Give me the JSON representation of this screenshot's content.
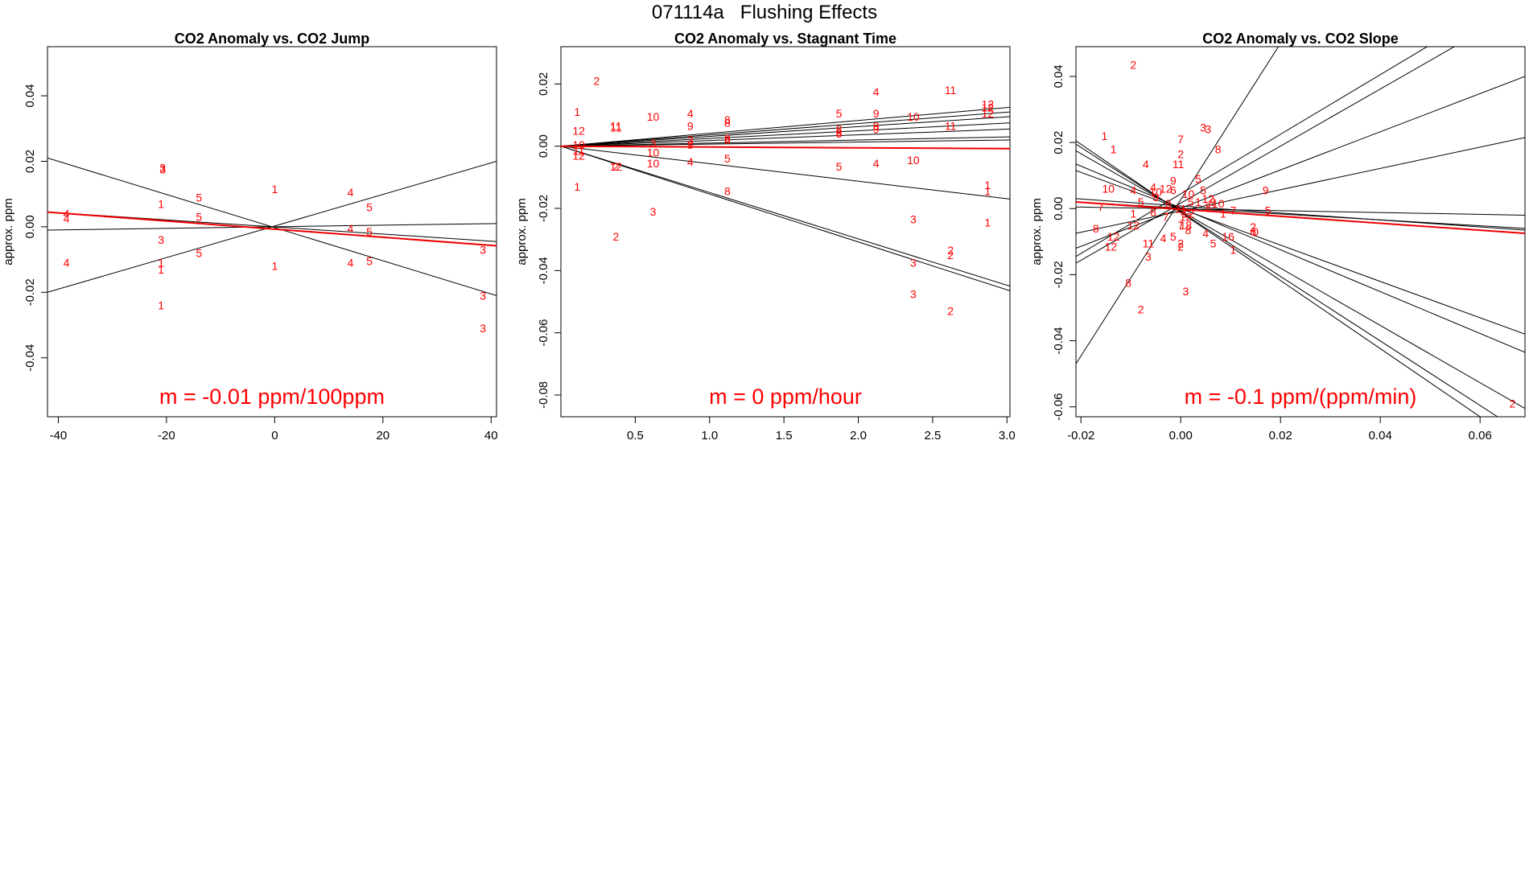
{
  "title": "071114a   Flushing Effects",
  "chart_data": [
    {
      "type": "scatter",
      "title": "CO2 Anomaly vs. CO2 Jump",
      "xlabel": "",
      "ylabel": "approx. ppm",
      "xlim": [
        -42,
        41
      ],
      "ylim": [
        -0.058,
        0.055
      ],
      "xticks": [
        -40,
        -20,
        0,
        20,
        40
      ],
      "xtick_labels": [
        "-40",
        "-20",
        "0",
        "20",
        "40"
      ],
      "yticks": [
        -0.04,
        -0.02,
        0.0,
        0.02,
        0.04
      ],
      "ytick_labels": [
        "-0.04",
        "-0.02",
        "0.00",
        "0.02",
        "0.04"
      ],
      "annotation": "m = -0.01 ppm/100ppm",
      "colors": {
        "points": "#ff0000",
        "fit": "#ee0000",
        "lines": "#000000"
      },
      "points": [
        {
          "x": -20.7,
          "y": 0.018,
          "label": "3"
        },
        {
          "x": -20.7,
          "y": 0.0175,
          "label": "3"
        },
        {
          "x": -14,
          "y": 0.009,
          "label": "5"
        },
        {
          "x": -14,
          "y": 0.003,
          "label": "5"
        },
        {
          "x": -14,
          "y": -0.008,
          "label": "5"
        },
        {
          "x": -21,
          "y": 0.007,
          "label": "1"
        },
        {
          "x": -21,
          "y": -0.004,
          "label": "3"
        },
        {
          "x": -21,
          "y": -0.011,
          "label": "1"
        },
        {
          "x": -21,
          "y": -0.013,
          "label": "1"
        },
        {
          "x": -21,
          "y": -0.024,
          "label": "1"
        },
        {
          "x": -38.5,
          "y": 0.004,
          "label": "4"
        },
        {
          "x": -38.5,
          "y": 0.0025,
          "label": "4"
        },
        {
          "x": -38.5,
          "y": -0.011,
          "label": "4"
        },
        {
          "x": 0,
          "y": 0.0115,
          "label": "1"
        },
        {
          "x": 0,
          "y": -0.012,
          "label": "1"
        },
        {
          "x": 14,
          "y": 0.0105,
          "label": "4"
        },
        {
          "x": 14,
          "y": -0.0005,
          "label": "4"
        },
        {
          "x": 14,
          "y": -0.011,
          "label": "4"
        },
        {
          "x": 17.5,
          "y": 0.006,
          "label": "5"
        },
        {
          "x": 17.5,
          "y": -0.0015,
          "label": "5"
        },
        {
          "x": 17.5,
          "y": -0.0105,
          "label": "5"
        },
        {
          "x": 38.5,
          "y": -0.007,
          "label": "3"
        },
        {
          "x": 38.5,
          "y": -0.021,
          "label": "3"
        },
        {
          "x": 38.5,
          "y": -0.031,
          "label": "3"
        }
      ],
      "lines": [
        {
          "x1": -42,
          "y1": 0.021,
          "x2": 41,
          "y2": -0.021
        },
        {
          "x1": -42,
          "y1": -0.02,
          "x2": 41,
          "y2": 0.02
        },
        {
          "x1": -42,
          "y1": 0.0045,
          "x2": 41,
          "y2": -0.0045
        },
        {
          "x1": -42,
          "y1": -0.001,
          "x2": 41,
          "y2": 0.001
        }
      ],
      "fit": {
        "x1": -42,
        "y1": 0.0045,
        "x2": 41,
        "y2": -0.0058
      }
    },
    {
      "type": "scatter",
      "title": "CO2 Anomaly vs. Stagnant Time",
      "xlabel": "",
      "ylabel": "approx. ppm",
      "xlim": [
        0,
        3.02
      ],
      "ylim": [
        -0.087,
        0.032
      ],
      "xticks": [
        0.5,
        1.0,
        1.5,
        2.0,
        2.5,
        3.0
      ],
      "xtick_labels": [
        "0.5",
        "1.0",
        "1.5",
        "2.0",
        "2.5",
        "3.0"
      ],
      "yticks": [
        -0.08,
        -0.06,
        -0.04,
        -0.02,
        0.0,
        0.02
      ],
      "ytick_labels": [
        "-0.08",
        "-0.06",
        "-0.04",
        "-0.02",
        "0.00",
        "0.02"
      ],
      "annotation": "m = 0 ppm/hour",
      "colors": {
        "points": "#ff0000",
        "fit": "#ee0000",
        "lines": "#000000"
      },
      "points": [
        {
          "x": 0.24,
          "y": 0.021,
          "label": "2"
        },
        {
          "x": 0.11,
          "y": 0.011,
          "label": "1"
        },
        {
          "x": 0.12,
          "y": 0.005,
          "label": "12"
        },
        {
          "x": 0.12,
          "y": 0.0005,
          "label": "10"
        },
        {
          "x": 0.12,
          "y": -0.0015,
          "label": "11"
        },
        {
          "x": 0.12,
          "y": -0.003,
          "label": "12"
        },
        {
          "x": 0.11,
          "y": -0.013,
          "label": "1"
        },
        {
          "x": 0.37,
          "y": 0.0065,
          "label": "11"
        },
        {
          "x": 0.37,
          "y": 0.006,
          "label": "11"
        },
        {
          "x": 0.37,
          "y": -0.0065,
          "label": "12"
        },
        {
          "x": 0.37,
          "y": -0.0065,
          "label": "2"
        },
        {
          "x": 0.37,
          "y": -0.029,
          "label": "2"
        },
        {
          "x": 0.62,
          "y": 0.0095,
          "label": "10"
        },
        {
          "x": 0.62,
          "y": 0.001,
          "label": "3"
        },
        {
          "x": 0.62,
          "y": -0.002,
          "label": "10"
        },
        {
          "x": 0.62,
          "y": -0.0055,
          "label": "10"
        },
        {
          "x": 0.62,
          "y": -0.021,
          "label": "3"
        },
        {
          "x": 0.87,
          "y": 0.0105,
          "label": "4"
        },
        {
          "x": 0.87,
          "y": 0.0065,
          "label": "9"
        },
        {
          "x": 0.87,
          "y": 0.002,
          "label": "3"
        },
        {
          "x": 0.87,
          "y": 0.0005,
          "label": "9"
        },
        {
          "x": 0.87,
          "y": -0.005,
          "label": "4"
        },
        {
          "x": 1.12,
          "y": 0.0085,
          "label": "8"
        },
        {
          "x": 1.12,
          "y": 0.0075,
          "label": "8"
        },
        {
          "x": 1.12,
          "y": 0.0025,
          "label": "8"
        },
        {
          "x": 1.12,
          "y": 0.002,
          "label": "8"
        },
        {
          "x": 1.12,
          "y": -0.004,
          "label": "5"
        },
        {
          "x": 1.12,
          "y": -0.0145,
          "label": "8"
        },
        {
          "x": 1.87,
          "y": 0.0105,
          "label": "5"
        },
        {
          "x": 1.87,
          "y": 0.0055,
          "label": "8"
        },
        {
          "x": 1.87,
          "y": 0.0045,
          "label": "8"
        },
        {
          "x": 1.87,
          "y": 0.004,
          "label": "8"
        },
        {
          "x": 1.87,
          "y": -0.0065,
          "label": "5"
        },
        {
          "x": 2.12,
          "y": 0.0175,
          "label": "4"
        },
        {
          "x": 2.12,
          "y": 0.0105,
          "label": "9"
        },
        {
          "x": 2.12,
          "y": 0.0065,
          "label": "9"
        },
        {
          "x": 2.12,
          "y": 0.0055,
          "label": "9"
        },
        {
          "x": 2.12,
          "y": -0.0055,
          "label": "4"
        },
        {
          "x": 2.37,
          "y": 0.0095,
          "label": "10"
        },
        {
          "x": 2.37,
          "y": -0.0045,
          "label": "10"
        },
        {
          "x": 2.37,
          "y": -0.0235,
          "label": "3"
        },
        {
          "x": 2.37,
          "y": -0.0375,
          "label": "3"
        },
        {
          "x": 2.37,
          "y": -0.0475,
          "label": "3"
        },
        {
          "x": 2.62,
          "y": 0.018,
          "label": "11"
        },
        {
          "x": 2.62,
          "y": 0.0065,
          "label": "11"
        },
        {
          "x": 2.62,
          "y": -0.0335,
          "label": "2"
        },
        {
          "x": 2.62,
          "y": -0.035,
          "label": "2"
        },
        {
          "x": 2.62,
          "y": -0.053,
          "label": "2"
        },
        {
          "x": 2.87,
          "y": 0.0135,
          "label": "12"
        },
        {
          "x": 2.87,
          "y": 0.0125,
          "label": "12"
        },
        {
          "x": 2.87,
          "y": 0.0105,
          "label": "12"
        },
        {
          "x": 2.87,
          "y": -0.0125,
          "label": "1"
        },
        {
          "x": 2.87,
          "y": -0.0145,
          "label": "1"
        },
        {
          "x": 2.87,
          "y": -0.0245,
          "label": "1"
        }
      ],
      "lines": [
        {
          "x1": 0,
          "y1": 0,
          "x2": 3.02,
          "y2": 0.0125
        },
        {
          "x1": 0,
          "y1": 0,
          "x2": 3.02,
          "y2": 0.011
        },
        {
          "x1": 0,
          "y1": 0,
          "x2": 3.02,
          "y2": 0.0095
        },
        {
          "x1": 0,
          "y1": 0,
          "x2": 3.02,
          "y2": 0.0075
        },
        {
          "x1": 0,
          "y1": 0,
          "x2": 3.02,
          "y2": 0.0055
        },
        {
          "x1": 0,
          "y1": 0,
          "x2": 3.02,
          "y2": 0.003
        },
        {
          "x1": 0,
          "y1": 0,
          "x2": 3.02,
          "y2": 0.002
        },
        {
          "x1": 0,
          "y1": 0,
          "x2": 3.02,
          "y2": -0.017
        },
        {
          "x1": 0,
          "y1": 0,
          "x2": 3.02,
          "y2": -0.045
        },
        {
          "x1": 0,
          "y1": 0,
          "x2": 3.02,
          "y2": -0.0465
        }
      ],
      "fit": {
        "x1": 0,
        "y1": 0,
        "x2": 3.02,
        "y2": -0.0008
      }
    },
    {
      "type": "scatter",
      "title": "CO2 Anomaly vs. CO2 Slope",
      "xlabel": "",
      "ylabel": "approx. ppm",
      "xlim": [
        -0.021,
        0.069
      ],
      "ylim": [
        -0.063,
        0.049
      ],
      "xticks": [
        -0.02,
        0.0,
        0.02,
        0.04,
        0.06
      ],
      "xtick_labels": [
        "-0.02",
        "0.00",
        "0.02",
        "0.04",
        "0.06"
      ],
      "yticks": [
        -0.06,
        -0.04,
        -0.02,
        0.0,
        0.02,
        0.04
      ],
      "ytick_labels": [
        "-0.06",
        "-0.04",
        "-0.02",
        "0.00",
        "0.02",
        "0.04"
      ],
      "annotation": "m = -0.1 ppm/(ppm/min)",
      "colors": {
        "points": "#ff0000",
        "fit": "#ee0000",
        "lines": "#000000"
      },
      "points": [
        {
          "x": -0.0095,
          "y": 0.0435,
          "label": "2"
        },
        {
          "x": -0.0153,
          "y": 0.022,
          "label": "1"
        },
        {
          "x": -0.0135,
          "y": 0.018,
          "label": "1"
        },
        {
          "x": -0.007,
          "y": 0.0135,
          "label": "4"
        },
        {
          "x": -0.0145,
          "y": 0.006,
          "label": "10"
        },
        {
          "x": -0.0095,
          "y": 0.0055,
          "label": "4"
        },
        {
          "x": -0.0055,
          "y": 0.0065,
          "label": "4"
        },
        {
          "x": -0.005,
          "y": 0.005,
          "label": "10"
        },
        {
          "x": -0.003,
          "y": 0.006,
          "label": "12"
        },
        {
          "x": -0.0015,
          "y": 0.0085,
          "label": "9"
        },
        {
          "x": 0.0,
          "y": 0.0165,
          "label": "2"
        },
        {
          "x": -0.0005,
          "y": 0.0135,
          "label": "11"
        },
        {
          "x": 0.0,
          "y": 0.021,
          "label": "7"
        },
        {
          "x": 0.0045,
          "y": 0.0245,
          "label": "3"
        },
        {
          "x": 0.0055,
          "y": 0.024,
          "label": "3"
        },
        {
          "x": 0.0075,
          "y": 0.018,
          "label": "8"
        },
        {
          "x": 0.0035,
          "y": 0.009,
          "label": "5"
        },
        {
          "x": 0.0045,
          "y": 0.0055,
          "label": "5"
        },
        {
          "x": 0.0015,
          "y": 0.0045,
          "label": "10"
        },
        {
          "x": -0.0015,
          "y": 0.0055,
          "label": "6"
        },
        {
          "x": -0.005,
          "y": 0.0035,
          "label": "9"
        },
        {
          "x": -0.008,
          "y": 0.002,
          "label": "5"
        },
        {
          "x": -0.0025,
          "y": 0.0015,
          "label": "8"
        },
        {
          "x": -0.016,
          "y": 0.0005,
          "label": "7"
        },
        {
          "x": -0.0095,
          "y": -0.0015,
          "label": "1"
        },
        {
          "x": -0.0055,
          "y": -0.001,
          "label": "8"
        },
        {
          "x": -0.003,
          "y": -0.0025,
          "label": "7"
        },
        {
          "x": -0.017,
          "y": -0.006,
          "label": "8"
        },
        {
          "x": -0.0095,
          "y": -0.005,
          "label": "12"
        },
        {
          "x": -0.0135,
          "y": -0.0085,
          "label": "12"
        },
        {
          "x": -0.014,
          "y": -0.0115,
          "label": "12"
        },
        {
          "x": -0.0065,
          "y": -0.0105,
          "label": "11"
        },
        {
          "x": -0.0065,
          "y": -0.0145,
          "label": "3"
        },
        {
          "x": -0.0035,
          "y": -0.009,
          "label": "4"
        },
        {
          "x": -0.0015,
          "y": -0.0085,
          "label": "5"
        },
        {
          "x": 0.0,
          "y": -0.0105,
          "label": "2"
        },
        {
          "x": 0.0,
          "y": -0.0115,
          "label": "2"
        },
        {
          "x": 0.0,
          "y": -0.005,
          "label": "7"
        },
        {
          "x": 0.001,
          "y": -0.005,
          "label": "18"
        },
        {
          "x": 0.0015,
          "y": -0.0065,
          "label": "8"
        },
        {
          "x": 0.001,
          "y": -0.0025,
          "label": "12"
        },
        {
          "x": 0.0015,
          "y": -0.0015,
          "label": "12"
        },
        {
          "x": 0.0,
          "y": 0.0,
          "label": "11"
        },
        {
          "x": 0.002,
          "y": 0.002,
          "label": "5"
        },
        {
          "x": 0.0035,
          "y": 0.002,
          "label": "1"
        },
        {
          "x": 0.0055,
          "y": 0.003,
          "label": "12"
        },
        {
          "x": 0.0065,
          "y": 0.002,
          "label": "9"
        },
        {
          "x": 0.0055,
          "y": 0.0005,
          "label": "8"
        },
        {
          "x": 0.0075,
          "y": 0.0015,
          "label": "10"
        },
        {
          "x": 0.0085,
          "y": -0.0015,
          "label": "1"
        },
        {
          "x": 0.0105,
          "y": -0.0005,
          "label": "7"
        },
        {
          "x": 0.017,
          "y": 0.0055,
          "label": "9"
        },
        {
          "x": 0.0175,
          "y": -0.0005,
          "label": "5"
        },
        {
          "x": 0.005,
          "y": -0.0075,
          "label": "4"
        },
        {
          "x": 0.0065,
          "y": -0.0105,
          "label": "5"
        },
        {
          "x": 0.0095,
          "y": -0.0085,
          "label": "16"
        },
        {
          "x": 0.0105,
          "y": -0.0125,
          "label": "1"
        },
        {
          "x": 0.0145,
          "y": -0.0055,
          "label": "2"
        },
        {
          "x": 0.0145,
          "y": -0.007,
          "label": "6"
        },
        {
          "x": 0.015,
          "y": -0.007,
          "label": "0"
        },
        {
          "x": 0.001,
          "y": -0.025,
          "label": "3"
        },
        {
          "x": -0.0105,
          "y": -0.0225,
          "label": "8"
        },
        {
          "x": -0.008,
          "y": -0.0305,
          "label": "2"
        },
        {
          "x": 0.0665,
          "y": -0.059,
          "label": "2"
        }
      ],
      "lines": [
        {
          "x1": -0.021,
          "y1": -0.047,
          "x2": 0.02,
          "y2": 0.05
        },
        {
          "x1": -0.021,
          "y1": -0.0165,
          "x2": 0.056,
          "y2": 0.05
        },
        {
          "x1": -0.021,
          "y1": -0.0145,
          "x2": 0.0505,
          "y2": 0.05
        },
        {
          "x1": -0.021,
          "y1": -0.012,
          "x2": 0.069,
          "y2": 0.04
        },
        {
          "x1": -0.021,
          "y1": -0.0075,
          "x2": 0.069,
          "y2": 0.0215
        },
        {
          "x1": -0.021,
          "y1": 0.0005,
          "x2": 0.069,
          "y2": -0.002
        },
        {
          "x1": -0.021,
          "y1": 0.002,
          "x2": 0.069,
          "y2": -0.006
        },
        {
          "x1": -0.021,
          "y1": 0.003,
          "x2": 0.069,
          "y2": -0.0065
        },
        {
          "x1": -0.021,
          "y1": 0.0115,
          "x2": 0.069,
          "y2": -0.038
        },
        {
          "x1": -0.021,
          "y1": 0.0135,
          "x2": 0.069,
          "y2": -0.0435
        },
        {
          "x1": -0.021,
          "y1": 0.0175,
          "x2": 0.069,
          "y2": -0.0605
        },
        {
          "x1": -0.021,
          "y1": 0.0195,
          "x2": 0.0635,
          "y2": -0.063
        },
        {
          "x1": -0.021,
          "y1": 0.0205,
          "x2": 0.06,
          "y2": -0.063
        }
      ],
      "fit": {
        "x1": -0.021,
        "y1": 0.002,
        "x2": 0.069,
        "y2": -0.0075
      }
    }
  ]
}
